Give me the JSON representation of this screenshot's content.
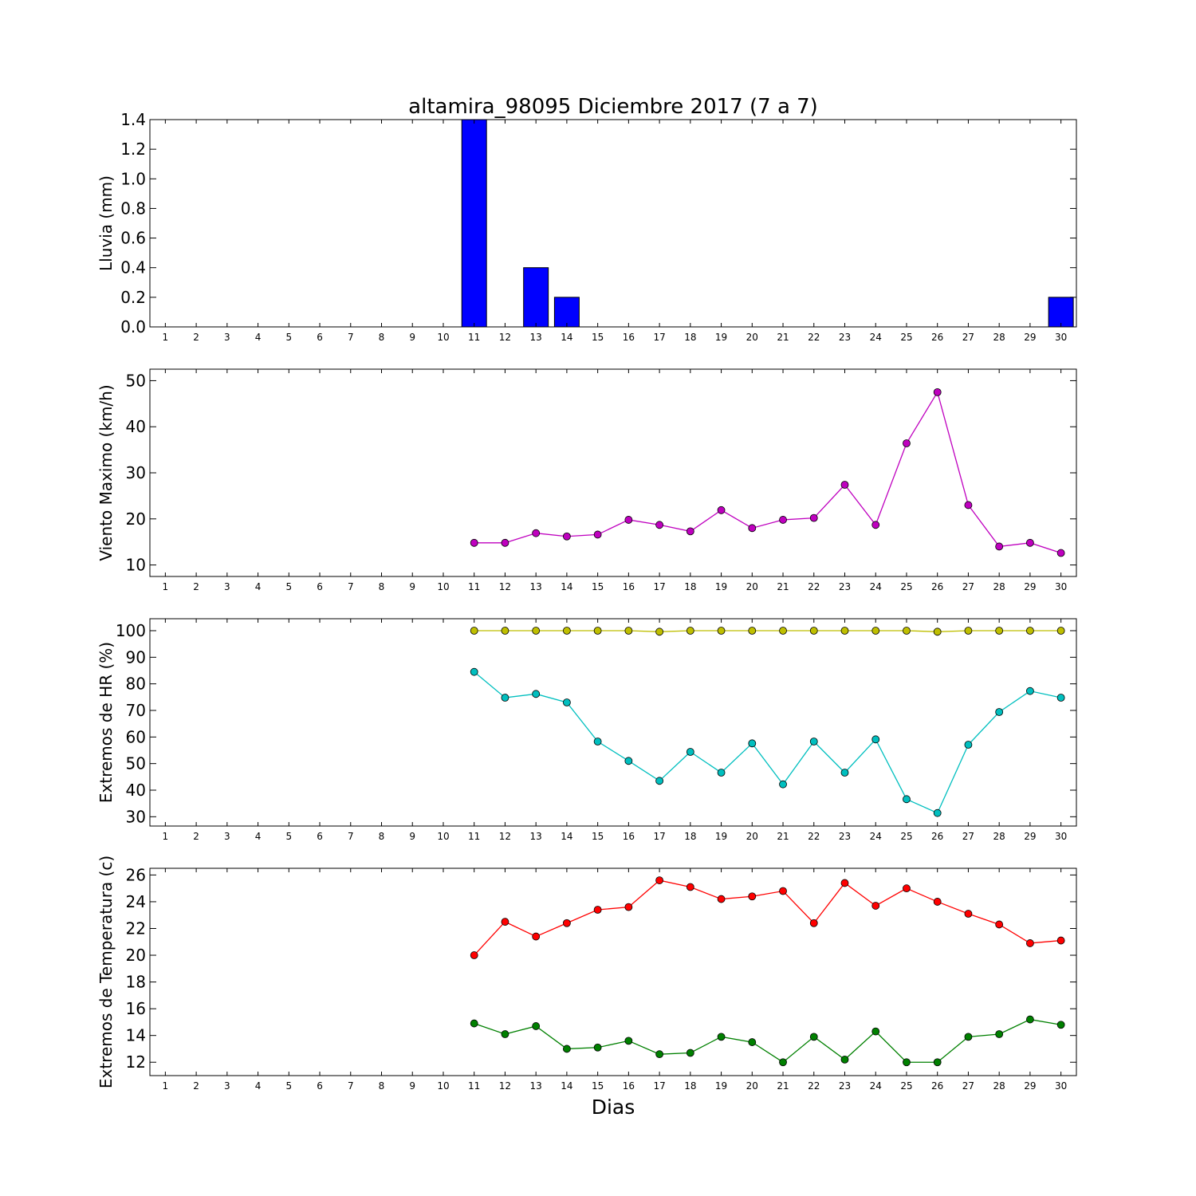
{
  "figure": {
    "title": "altamira_98095 Diciembre 2017  (7 a 7)",
    "xlabel": "Dias"
  },
  "chart_data": [
    {
      "type": "bar",
      "ylabel": "Lluvia (mm)",
      "x": [
        1,
        2,
        3,
        4,
        5,
        6,
        7,
        8,
        9,
        10,
        11,
        12,
        13,
        14,
        15,
        16,
        17,
        18,
        19,
        20,
        21,
        22,
        23,
        24,
        25,
        26,
        27,
        28,
        29,
        30
      ],
      "xlim": [
        0.5,
        30.5
      ],
      "ylim": [
        0.0,
        1.4
      ],
      "yticks": [
        0.0,
        0.2,
        0.4,
        0.6,
        0.8,
        1.0,
        1.2,
        1.4
      ],
      "ytick_labels": [
        "0.0",
        "0.2",
        "0.4",
        "0.6",
        "0.8",
        "1.0",
        "1.2",
        "1.4"
      ],
      "series": [
        {
          "color": "#0000ff",
          "values": [
            0,
            0,
            0,
            0,
            0,
            0,
            0,
            0,
            0,
            0,
            1.4,
            0,
            0.4,
            0.2,
            0,
            0,
            0,
            0,
            0,
            0,
            0,
            0,
            0,
            0,
            0,
            0,
            0,
            0,
            0,
            0.2
          ]
        }
      ],
      "grid": false
    },
    {
      "type": "line",
      "ylabel": "Viento Maximo (km/h)",
      "x": [
        1,
        2,
        3,
        4,
        5,
        6,
        7,
        8,
        9,
        10,
        11,
        12,
        13,
        14,
        15,
        16,
        17,
        18,
        19,
        20,
        21,
        22,
        23,
        24,
        25,
        26,
        27,
        28,
        29,
        30
      ],
      "xlim": [
        0.5,
        30.5
      ],
      "ylim": [
        7.5,
        52.5
      ],
      "yticks": [
        10,
        20,
        30,
        40,
        50
      ],
      "ytick_labels": [
        "10",
        "20",
        "30",
        "40",
        "50"
      ],
      "series": [
        {
          "color": "#bf00bf",
          "values": [
            null,
            null,
            null,
            null,
            null,
            null,
            null,
            null,
            null,
            null,
            14.8,
            14.8,
            16.9,
            16.2,
            16.6,
            19.8,
            18.7,
            17.3,
            21.9,
            18.0,
            19.8,
            20.2,
            27.4,
            18.7,
            36.4,
            47.5,
            23.0,
            14.0,
            14.8,
            12.6
          ]
        }
      ],
      "grid": false
    },
    {
      "type": "line",
      "ylabel": "Extremos de HR (%)",
      "x": [
        1,
        2,
        3,
        4,
        5,
        6,
        7,
        8,
        9,
        10,
        11,
        12,
        13,
        14,
        15,
        16,
        17,
        18,
        19,
        20,
        21,
        22,
        23,
        24,
        25,
        26,
        27,
        28,
        29,
        30
      ],
      "xlim": [
        0.5,
        30.5
      ],
      "ylim": [
        26.5,
        104.5
      ],
      "yticks": [
        30,
        40,
        50,
        60,
        70,
        80,
        90,
        100
      ],
      "ytick_labels": [
        "30",
        "40",
        "50",
        "60",
        "70",
        "80",
        "90",
        "100"
      ],
      "series": [
        {
          "color": "#bfbf00",
          "values": [
            null,
            null,
            null,
            null,
            null,
            null,
            null,
            null,
            null,
            null,
            100,
            100,
            100,
            100,
            100,
            100,
            99.6,
            100,
            100,
            100,
            100,
            100,
            100,
            100,
            100,
            99.6,
            100,
            100,
            100,
            100
          ]
        },
        {
          "color": "#00bfbf",
          "values": [
            null,
            null,
            null,
            null,
            null,
            null,
            null,
            null,
            null,
            null,
            84.5,
            74.8,
            76.2,
            73.0,
            58.3,
            51.0,
            43.5,
            54.4,
            46.6,
            57.6,
            42.2,
            58.3,
            46.6,
            59.1,
            36.6,
            31.4,
            57.1,
            69.4,
            77.3,
            74.8
          ]
        }
      ],
      "grid": false
    },
    {
      "type": "line",
      "ylabel": "Extremos de Temperatura (c)",
      "x": [
        1,
        2,
        3,
        4,
        5,
        6,
        7,
        8,
        9,
        10,
        11,
        12,
        13,
        14,
        15,
        16,
        17,
        18,
        19,
        20,
        21,
        22,
        23,
        24,
        25,
        26,
        27,
        28,
        29,
        30
      ],
      "xlim": [
        0.5,
        30.5
      ],
      "ylim": [
        11.0,
        26.5
      ],
      "yticks": [
        12,
        14,
        16,
        18,
        20,
        22,
        24,
        26
      ],
      "ytick_labels": [
        "12",
        "14",
        "16",
        "18",
        "20",
        "22",
        "24",
        "26"
      ],
      "series": [
        {
          "color": "#ff0000",
          "values": [
            null,
            null,
            null,
            null,
            null,
            null,
            null,
            null,
            null,
            null,
            20.0,
            22.5,
            21.4,
            22.4,
            23.4,
            23.6,
            25.6,
            25.1,
            24.2,
            24.4,
            24.8,
            22.4,
            25.4,
            23.7,
            25.0,
            24.0,
            23.1,
            22.3,
            20.9,
            21.1
          ]
        },
        {
          "color": "#008000",
          "values": [
            null,
            null,
            null,
            null,
            null,
            null,
            null,
            null,
            null,
            null,
            14.9,
            14.1,
            14.7,
            13.0,
            13.1,
            13.6,
            12.6,
            12.7,
            13.9,
            13.5,
            12.0,
            13.9,
            12.2,
            14.3,
            12.0,
            12.0,
            13.9,
            14.1,
            15.2,
            14.8
          ]
        }
      ],
      "grid": false
    }
  ]
}
